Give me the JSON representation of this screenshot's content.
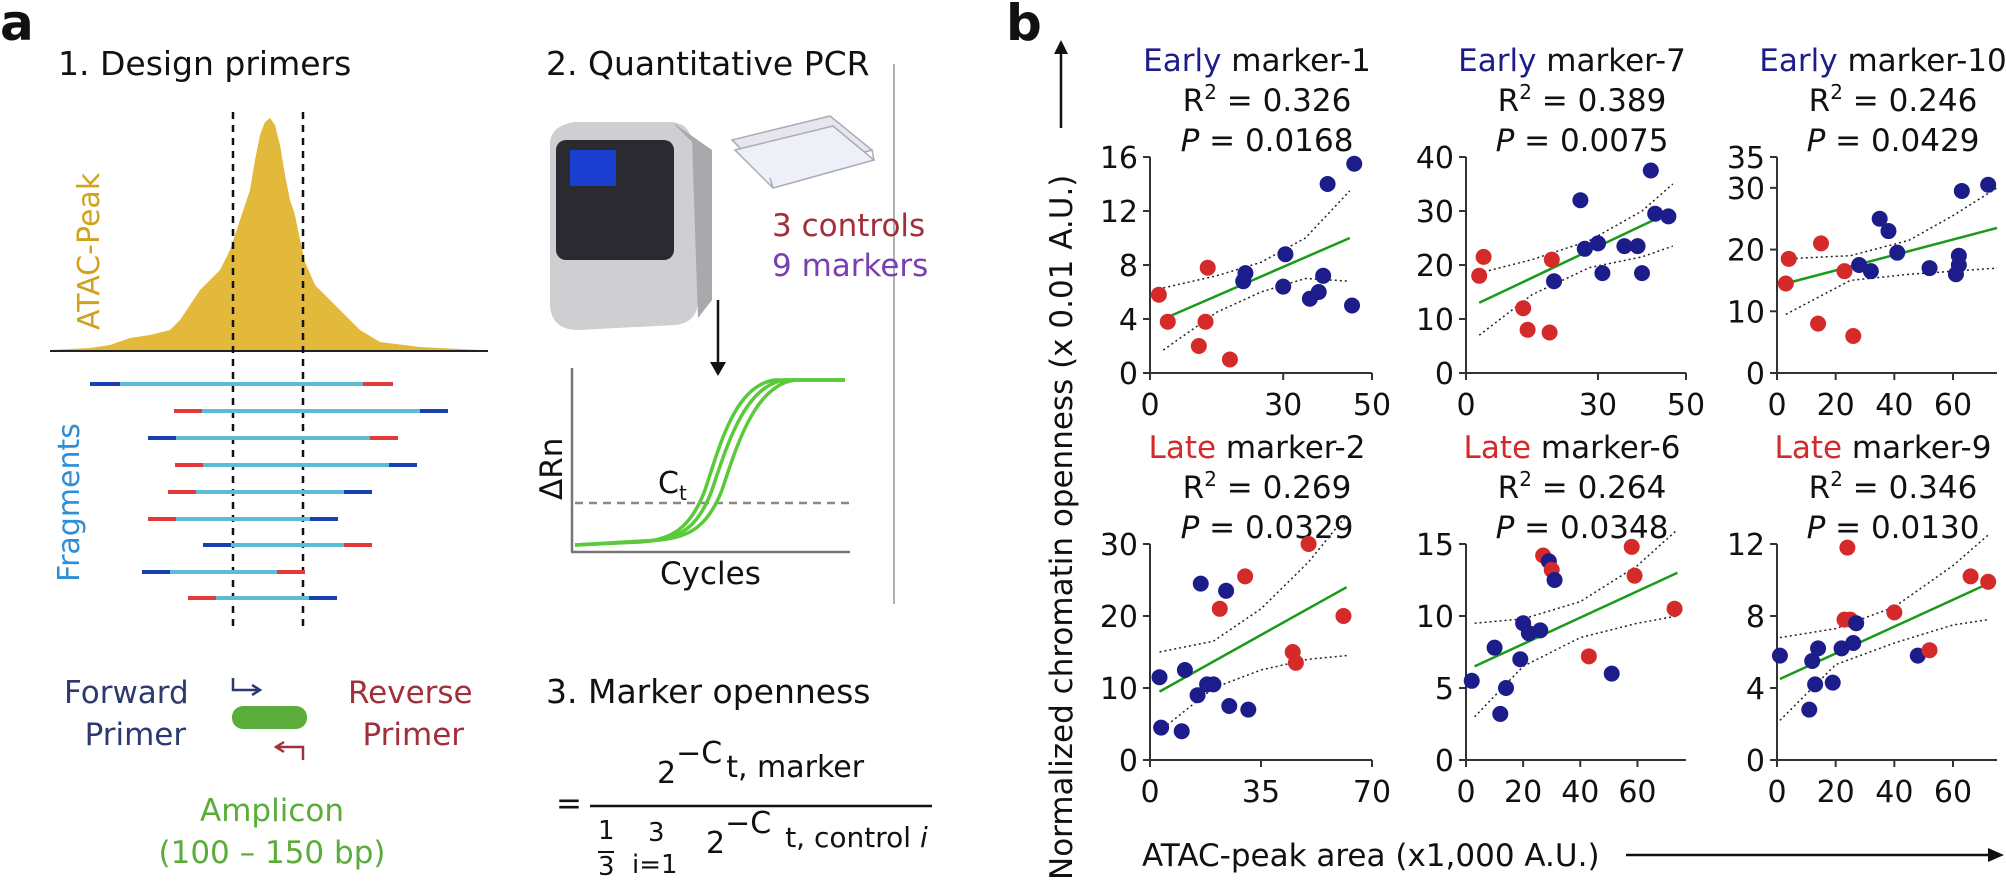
{
  "panel_a": {
    "letter": "a",
    "step1": "1. Design primers",
    "step2": "2. Quantitative PCR",
    "step3": "3. Marker openness",
    "atac_peak_label": "ATAC-Peak",
    "fragments_label": "Fragments",
    "controls_text": "3 controls",
    "markers_text": "9 markers",
    "qpcr_ylabel": "ΔRn",
    "qpcr_xlabel": "Cycles",
    "ct_label": "C",
    "ct_sub": "t",
    "forward_primer": [
      "Forward",
      "Primer"
    ],
    "reverse_primer": [
      "Reverse",
      "Primer"
    ],
    "amplicon": [
      "Amplicon",
      "(100 – 150 bp)"
    ],
    "formula": {
      "equals": "=",
      "num_base": "2",
      "num_exp": "−C",
      "num_sub": "t, marker",
      "frac_num": "1",
      "frac_den": "3",
      "sum_top": "3",
      "sum_bottom": "i=1",
      "den_base": "2",
      "den_exp": "−C",
      "den_sub": "t, control ",
      "den_sub_i": "i"
    },
    "colors": {
      "peak": "#e2b93b",
      "fragment": "#5bbcd6",
      "blue_end": "#1a3fb0",
      "red_end": "#e23a3a",
      "curve": "#5ac93a",
      "controls": "#a0303a",
      "markers": "#7a3fb0",
      "forward": "#2d3a6e",
      "reverse": "#a0303a",
      "amplicon": "#5aad3a",
      "fragments_label": "#2f8fd6",
      "atac_label": "#d1a21e"
    }
  },
  "panel_b": {
    "letter": "b",
    "ylabel": "Normalized chromatin openness (x 0.01 A.U.)",
    "xlabel": "ATAC-peak area (x1,000 A.U.)",
    "colors": {
      "early": "#1c1c8a",
      "late": "#d42a2a",
      "fit": "#1a9a1a",
      "ci": "#222222"
    }
  },
  "chart_data": [
    {
      "type": "scatter",
      "title_prefix": "Early",
      "title_rest": " marker-1",
      "r2_label": "R",
      "r2_sup": "2",
      "r2_value": " = 0.326",
      "p_label": "P",
      "p_value": " = 0.0168",
      "xlim": [
        0,
        50
      ],
      "ylim": [
        0,
        16
      ],
      "xticks": [
        0,
        30,
        50
      ],
      "yticks": [
        0,
        4,
        8,
        12,
        16
      ],
      "fit": [
        [
          3,
          4.0
        ],
        [
          45,
          10.0
        ]
      ],
      "ci_upper": [
        [
          3,
          6.3
        ],
        [
          15,
          7.2
        ],
        [
          25,
          8.2
        ],
        [
          35,
          10.0
        ],
        [
          45,
          13.5
        ]
      ],
      "ci_lower": [
        [
          3,
          1.7
        ],
        [
          15,
          4.5
        ],
        [
          25,
          6.0
        ],
        [
          35,
          7.0
        ],
        [
          45,
          6.8
        ]
      ],
      "points": [
        {
          "x": 2,
          "y": 5.8,
          "g": "late"
        },
        {
          "x": 4,
          "y": 3.8,
          "g": "late"
        },
        {
          "x": 11,
          "y": 2.0,
          "g": "late"
        },
        {
          "x": 12.5,
          "y": 3.8,
          "g": "late"
        },
        {
          "x": 13,
          "y": 7.8,
          "g": "late"
        },
        {
          "x": 18,
          "y": 1.0,
          "g": "late"
        },
        {
          "x": 21,
          "y": 6.8,
          "g": "early"
        },
        {
          "x": 21.5,
          "y": 7.4,
          "g": "early"
        },
        {
          "x": 30,
          "y": 6.4,
          "g": "early"
        },
        {
          "x": 30.5,
          "y": 8.8,
          "g": "early"
        },
        {
          "x": 36,
          "y": 5.5,
          "g": "early"
        },
        {
          "x": 38,
          "y": 6.0,
          "g": "early"
        },
        {
          "x": 39,
          "y": 7.2,
          "g": "early"
        },
        {
          "x": 40,
          "y": 14.0,
          "g": "early"
        },
        {
          "x": 45.5,
          "y": 5.0,
          "g": "early"
        },
        {
          "x": 46,
          "y": 15.5,
          "g": "early"
        }
      ]
    },
    {
      "type": "scatter",
      "title_prefix": "Early",
      "title_rest": " marker-7",
      "r2_label": "R",
      "r2_sup": "2",
      "r2_value": " = 0.389",
      "p_label": "P",
      "p_value": " = 0.0075",
      "xlim": [
        0,
        50
      ],
      "ylim": [
        0,
        40
      ],
      "xticks": [
        0,
        30,
        50
      ],
      "yticks": [
        0,
        10,
        20,
        30,
        40
      ],
      "fit": [
        [
          3,
          13.0
        ],
        [
          47,
          30.0
        ]
      ],
      "ci_upper": [
        [
          3,
          18.5
        ],
        [
          15,
          21.0
        ],
        [
          28,
          24.5
        ],
        [
          40,
          30.0
        ],
        [
          47,
          35.0
        ]
      ],
      "ci_lower": [
        [
          3,
          7.0
        ],
        [
          15,
          14.5
        ],
        [
          28,
          19.5
        ],
        [
          40,
          21.5
        ],
        [
          47,
          23.5
        ]
      ],
      "points": [
        {
          "x": 3,
          "y": 18.0,
          "g": "late"
        },
        {
          "x": 4,
          "y": 21.5,
          "g": "late"
        },
        {
          "x": 13,
          "y": 12.0,
          "g": "late"
        },
        {
          "x": 14,
          "y": 8.0,
          "g": "late"
        },
        {
          "x": 19,
          "y": 7.5,
          "g": "late"
        },
        {
          "x": 19.5,
          "y": 21.0,
          "g": "late"
        },
        {
          "x": 20,
          "y": 17.0,
          "g": "early"
        },
        {
          "x": 26,
          "y": 32.0,
          "g": "early"
        },
        {
          "x": 27,
          "y": 23.0,
          "g": "early"
        },
        {
          "x": 30,
          "y": 24.0,
          "g": "early"
        },
        {
          "x": 31,
          "y": 18.5,
          "g": "early"
        },
        {
          "x": 36,
          "y": 23.5,
          "g": "early"
        },
        {
          "x": 39,
          "y": 23.5,
          "g": "early"
        },
        {
          "x": 40,
          "y": 18.5,
          "g": "early"
        },
        {
          "x": 42,
          "y": 37.5,
          "g": "early"
        },
        {
          "x": 43,
          "y": 29.5,
          "g": "early"
        },
        {
          "x": 46,
          "y": 29.0,
          "g": "early"
        }
      ]
    },
    {
      "type": "scatter",
      "title_prefix": "Early",
      "title_rest": " marker-10",
      "r2_label": "R",
      "r2_sup": "2",
      "r2_value": " = 0.246",
      "p_label": "P",
      "p_value": " = 0.0429",
      "xlim": [
        0,
        75
      ],
      "ylim": [
        0,
        35
      ],
      "xticks": [
        0,
        20,
        40,
        60
      ],
      "yticks": [
        0,
        10,
        20,
        30,
        35
      ],
      "fit": [
        [
          3,
          14.5
        ],
        [
          75,
          23.5
        ]
      ],
      "ci_upper": [
        [
          3,
          18.5
        ],
        [
          25,
          19.0
        ],
        [
          45,
          21.5
        ],
        [
          60,
          25.5
        ],
        [
          75,
          30.0
        ]
      ],
      "ci_lower": [
        [
          3,
          9.5
        ],
        [
          25,
          15.0
        ],
        [
          45,
          16.0
        ],
        [
          60,
          16.5
        ],
        [
          75,
          17.0
        ]
      ],
      "points": [
        {
          "x": 3,
          "y": 14.5,
          "g": "late"
        },
        {
          "x": 4,
          "y": 18.5,
          "g": "late"
        },
        {
          "x": 14,
          "y": 8.0,
          "g": "late"
        },
        {
          "x": 15,
          "y": 21.0,
          "g": "late"
        },
        {
          "x": 23,
          "y": 16.5,
          "g": "late"
        },
        {
          "x": 26,
          "y": 6.0,
          "g": "late"
        },
        {
          "x": 28,
          "y": 17.5,
          "g": "early"
        },
        {
          "x": 32,
          "y": 16.5,
          "g": "early"
        },
        {
          "x": 35,
          "y": 25.0,
          "g": "early"
        },
        {
          "x": 38,
          "y": 23.0,
          "g": "early"
        },
        {
          "x": 41,
          "y": 19.5,
          "g": "early"
        },
        {
          "x": 52,
          "y": 17.0,
          "g": "early"
        },
        {
          "x": 61,
          "y": 16.0,
          "g": "early"
        },
        {
          "x": 62,
          "y": 17.5,
          "g": "early"
        },
        {
          "x": 62,
          "y": 19.0,
          "g": "early"
        },
        {
          "x": 63,
          "y": 29.5,
          "g": "early"
        },
        {
          "x": 72,
          "y": 30.5,
          "g": "early"
        }
      ]
    },
    {
      "type": "scatter",
      "title_prefix": "Late",
      "title_rest": " marker-2",
      "r2_label": "R",
      "r2_sup": "2",
      "r2_value": " = 0.269",
      "p_label": "P",
      "p_value": " = 0.0329",
      "xlim": [
        0,
        70
      ],
      "ylim": [
        0,
        30
      ],
      "xticks": [
        0,
        35,
        70
      ],
      "yticks": [
        0,
        10,
        20,
        30
      ],
      "fit": [
        [
          3,
          9.5
        ],
        [
          62,
          24.0
        ]
      ],
      "ci_upper": [
        [
          3,
          15.0
        ],
        [
          20,
          16.5
        ],
        [
          35,
          21.0
        ],
        [
          50,
          27.5
        ],
        [
          62,
          34.0
        ]
      ],
      "ci_lower": [
        [
          3,
          4.0
        ],
        [
          20,
          10.0
        ],
        [
          35,
          12.5
        ],
        [
          50,
          14.0
        ],
        [
          62,
          14.5
        ]
      ],
      "points": [
        {
          "x": 3,
          "y": 11.5,
          "g": "early"
        },
        {
          "x": 3.5,
          "y": 4.5,
          "g": "early"
        },
        {
          "x": 10,
          "y": 4.0,
          "g": "early"
        },
        {
          "x": 11,
          "y": 12.5,
          "g": "early"
        },
        {
          "x": 15,
          "y": 9.0,
          "g": "early"
        },
        {
          "x": 16,
          "y": 24.5,
          "g": "early"
        },
        {
          "x": 18,
          "y": 10.5,
          "g": "early"
        },
        {
          "x": 20,
          "y": 10.5,
          "g": "early"
        },
        {
          "x": 22,
          "y": 21.0,
          "g": "late"
        },
        {
          "x": 24,
          "y": 23.5,
          "g": "early"
        },
        {
          "x": 25,
          "y": 7.5,
          "g": "early"
        },
        {
          "x": 30,
          "y": 25.5,
          "g": "late"
        },
        {
          "x": 31,
          "y": 7.0,
          "g": "early"
        },
        {
          "x": 45,
          "y": 15.0,
          "g": "late"
        },
        {
          "x": 46,
          "y": 13.5,
          "g": "late"
        },
        {
          "x": 50,
          "y": 30.0,
          "g": "late"
        },
        {
          "x": 61,
          "y": 20.0,
          "g": "late"
        }
      ]
    },
    {
      "type": "scatter",
      "title_prefix": "Late",
      "title_rest": " marker-6",
      "r2_label": "R",
      "r2_sup": "2",
      "r2_value": " = 0.264",
      "p_label": "P",
      "p_value": " = 0.0348",
      "xlim": [
        0,
        77
      ],
      "ylim": [
        0,
        15
      ],
      "xticks": [
        0,
        20,
        40,
        60
      ],
      "yticks": [
        0,
        5,
        10,
        15
      ],
      "fit": [
        [
          3,
          6.5
        ],
        [
          74,
          13.0
        ]
      ],
      "ci_upper": [
        [
          3,
          9.5
        ],
        [
          20,
          9.8
        ],
        [
          40,
          11.0
        ],
        [
          60,
          13.5
        ],
        [
          74,
          16.0
        ]
      ],
      "ci_lower": [
        [
          3,
          3.0
        ],
        [
          20,
          6.5
        ],
        [
          40,
          8.5
        ],
        [
          60,
          9.5
        ],
        [
          74,
          10.0
        ]
      ],
      "points": [
        {
          "x": 2,
          "y": 5.5,
          "g": "early"
        },
        {
          "x": 10,
          "y": 7.8,
          "g": "early"
        },
        {
          "x": 12,
          "y": 3.2,
          "g": "early"
        },
        {
          "x": 14,
          "y": 5.0,
          "g": "early"
        },
        {
          "x": 19,
          "y": 7.0,
          "g": "early"
        },
        {
          "x": 20,
          "y": 9.5,
          "g": "early"
        },
        {
          "x": 22,
          "y": 8.8,
          "g": "early"
        },
        {
          "x": 26,
          "y": 9.0,
          "g": "early"
        },
        {
          "x": 27,
          "y": 14.2,
          "g": "late"
        },
        {
          "x": 29,
          "y": 13.8,
          "g": "early"
        },
        {
          "x": 30,
          "y": 13.2,
          "g": "late"
        },
        {
          "x": 31,
          "y": 12.5,
          "g": "early"
        },
        {
          "x": 43,
          "y": 7.2,
          "g": "late"
        },
        {
          "x": 51,
          "y": 6.0,
          "g": "early"
        },
        {
          "x": 58,
          "y": 14.8,
          "g": "late"
        },
        {
          "x": 59,
          "y": 12.8,
          "g": "late"
        },
        {
          "x": 73,
          "y": 10.5,
          "g": "late"
        }
      ]
    },
    {
      "type": "scatter",
      "title_prefix": "Late",
      "title_rest": " marker-9",
      "r2_label": "R",
      "r2_sup": "2",
      "r2_value": " = 0.346",
      "p_label": "P",
      "p_value": " = 0.0130",
      "xlim": [
        0,
        75
      ],
      "ylim": [
        0,
        12
      ],
      "xticks": [
        0,
        20,
        40,
        60
      ],
      "yticks": [
        0,
        4,
        8,
        12
      ],
      "fit": [
        [
          1,
          4.5
        ],
        [
          72,
          9.8
        ]
      ],
      "ci_upper": [
        [
          1,
          6.8
        ],
        [
          20,
          7.3
        ],
        [
          40,
          8.5
        ],
        [
          60,
          10.8
        ],
        [
          72,
          12.5
        ]
      ],
      "ci_lower": [
        [
          1,
          2.2
        ],
        [
          20,
          5.3
        ],
        [
          40,
          6.5
        ],
        [
          60,
          7.5
        ],
        [
          72,
          7.8
        ]
      ],
      "points": [
        {
          "x": 1,
          "y": 5.8,
          "g": "early"
        },
        {
          "x": 11,
          "y": 2.8,
          "g": "early"
        },
        {
          "x": 12,
          "y": 5.5,
          "g": "early"
        },
        {
          "x": 13,
          "y": 4.2,
          "g": "early"
        },
        {
          "x": 14,
          "y": 6.2,
          "g": "early"
        },
        {
          "x": 19,
          "y": 4.3,
          "g": "early"
        },
        {
          "x": 22,
          "y": 6.2,
          "g": "early"
        },
        {
          "x": 23,
          "y": 7.8,
          "g": "late"
        },
        {
          "x": 24,
          "y": 11.8,
          "g": "late"
        },
        {
          "x": 25,
          "y": 7.8,
          "g": "late"
        },
        {
          "x": 26,
          "y": 6.5,
          "g": "early"
        },
        {
          "x": 27,
          "y": 7.6,
          "g": "early"
        },
        {
          "x": 40,
          "y": 8.2,
          "g": "late"
        },
        {
          "x": 48,
          "y": 5.8,
          "g": "early"
        },
        {
          "x": 52,
          "y": 6.1,
          "g": "late"
        },
        {
          "x": 66,
          "y": 10.2,
          "g": "late"
        },
        {
          "x": 72,
          "y": 9.9,
          "g": "late"
        }
      ]
    }
  ]
}
